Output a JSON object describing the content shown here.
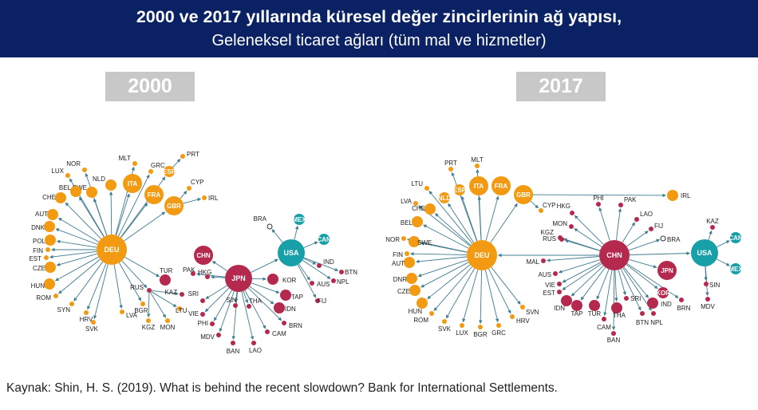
{
  "header": {
    "title": "2000 ve 2017 yıllarında küresel değer zincirlerinin ağ yapısı,",
    "subtitle": "Geleneksel ticaret ağları (tüm mal ve hizmetler)"
  },
  "years": {
    "left": "2000",
    "right": "2017"
  },
  "source": "Kaynak: Shin, H. S. (2019). What is behind the recent slowdown? Bank for International Settlements.",
  "colors": {
    "header_bg": "#0a2263",
    "orange": "#f29a12",
    "crimson": "#b5294e",
    "teal": "#17a0a8",
    "edge": "#3f7c8f",
    "year_box": "#c8c8c8"
  },
  "network_2000": {
    "nodes": [
      {
        "id": "DEU",
        "label": "DEU",
        "group": "orange",
        "size": "hub"
      },
      {
        "id": "ITA",
        "label": "ITA",
        "group": "orange",
        "size": "m"
      },
      {
        "id": "FRA",
        "label": "FRA",
        "group": "orange",
        "size": "m"
      },
      {
        "id": "GBR",
        "label": "GBR",
        "group": "orange",
        "size": "m"
      },
      {
        "id": "ESP",
        "label": "ESP",
        "group": "orange",
        "size": "s"
      },
      {
        "id": "NLD",
        "label": "NLD",
        "group": "orange",
        "size": "s"
      },
      {
        "id": "SWE",
        "label": "SWE",
        "group": "orange",
        "size": "s"
      },
      {
        "id": "NOR",
        "label": "NOR",
        "group": "orange",
        "size": "xs"
      },
      {
        "id": "LUX",
        "label": "LUX",
        "group": "orange",
        "size": "xs"
      },
      {
        "id": "BEL",
        "label": "BEL",
        "group": "orange",
        "size": "s"
      },
      {
        "id": "CHE",
        "label": "CHE",
        "group": "orange",
        "size": "s"
      },
      {
        "id": "AUT",
        "label": "AUT",
        "group": "orange",
        "size": "s"
      },
      {
        "id": "DNK",
        "label": "DNK",
        "group": "orange",
        "size": "s"
      },
      {
        "id": "POL",
        "label": "POL",
        "group": "orange",
        "size": "s"
      },
      {
        "id": "FIN",
        "label": "FIN",
        "group": "orange",
        "size": "xs"
      },
      {
        "id": "EST",
        "label": "EST",
        "group": "orange",
        "size": "xs"
      },
      {
        "id": "CZE",
        "label": "CZE",
        "group": "orange",
        "size": "s"
      },
      {
        "id": "HUN",
        "label": "HUN",
        "group": "orange",
        "size": "s"
      },
      {
        "id": "ROM",
        "label": "ROM",
        "group": "orange",
        "size": "xs"
      },
      {
        "id": "SYN",
        "label": "SYN",
        "group": "orange",
        "size": "xs"
      },
      {
        "id": "HRV",
        "label": "HRV",
        "group": "orange",
        "size": "xs"
      },
      {
        "id": "SVK",
        "label": "SVK",
        "group": "orange",
        "size": "xs"
      },
      {
        "id": "LVA",
        "label": "LVA",
        "group": "orange",
        "size": "xs"
      },
      {
        "id": "BGR",
        "label": "BGR",
        "group": "orange",
        "size": "xs"
      },
      {
        "id": "KGZ",
        "label": "KGZ",
        "group": "orange",
        "size": "xs"
      },
      {
        "id": "MON",
        "label": "MON",
        "group": "orange",
        "size": "xs"
      },
      {
        "id": "MLT",
        "label": "MLT",
        "group": "orange",
        "size": "xs"
      },
      {
        "id": "GRC",
        "label": "GRC",
        "group": "orange",
        "size": "xs"
      },
      {
        "id": "PRT",
        "label": "PRT",
        "group": "orange",
        "size": "xs"
      },
      {
        "id": "CYP",
        "label": "CYP",
        "group": "orange",
        "size": "xs"
      },
      {
        "id": "IRL",
        "label": "IRL",
        "group": "orange",
        "size": "xs"
      },
      {
        "id": "LTU",
        "label": "LTU",
        "group": "orange",
        "size": "xs"
      },
      {
        "id": "TUR",
        "label": "TUR",
        "group": "crimson",
        "size": "s"
      },
      {
        "id": "RUS",
        "label": "RUS",
        "group": "crimson",
        "size": "xs"
      },
      {
        "id": "KAZ",
        "label": "KAZ",
        "group": "crimson",
        "size": "xs"
      },
      {
        "id": "JPN",
        "label": "JPN",
        "group": "crimson",
        "size": "l"
      },
      {
        "id": "CHN",
        "label": "CHN",
        "group": "crimson",
        "size": "m"
      },
      {
        "id": "KOR",
        "label": "KOR",
        "group": "crimson",
        "size": "s"
      },
      {
        "id": "PAK",
        "label": "PAK",
        "group": "crimson",
        "size": "xs"
      },
      {
        "id": "HKG",
        "label": "HKG",
        "group": "crimson",
        "size": "xs"
      },
      {
        "id": "SRI",
        "label": "SRI",
        "group": "crimson",
        "size": "xs"
      },
      {
        "id": "VIE",
        "label": "VIE",
        "group": "crimson",
        "size": "xs"
      },
      {
        "id": "PHI",
        "label": "PHI",
        "group": "crimson",
        "size": "xs"
      },
      {
        "id": "MDV",
        "label": "MDV",
        "group": "crimson",
        "size": "xs"
      },
      {
        "id": "BAN",
        "label": "BAN",
        "group": "crimson",
        "size": "xs"
      },
      {
        "id": "SIN",
        "label": "SIN",
        "group": "crimson",
        "size": "xs"
      },
      {
        "id": "THA",
        "label": "THA",
        "group": "crimson",
        "size": "xs"
      },
      {
        "id": "LAO",
        "label": "LAO",
        "group": "crimson",
        "size": "xs"
      },
      {
        "id": "CAM",
        "label": "CAM",
        "group": "crimson",
        "size": "xs"
      },
      {
        "id": "IDN",
        "label": "IDN",
        "group": "crimson",
        "size": "s"
      },
      {
        "id": "TAP",
        "label": "TAP",
        "group": "crimson",
        "size": "s"
      },
      {
        "id": "BRN",
        "label": "BRN",
        "group": "crimson",
        "size": "xs"
      },
      {
        "id": "USA",
        "label": "USA",
        "group": "teal",
        "size": "l"
      },
      {
        "id": "MEX",
        "label": "MEX",
        "group": "teal",
        "size": "s"
      },
      {
        "id": "CAN",
        "label": "CAN",
        "group": "teal",
        "size": "s"
      },
      {
        "id": "BRA",
        "label": "BRA",
        "group": "hollow",
        "size": "xs"
      },
      {
        "id": "IND",
        "label": "IND",
        "group": "crimson",
        "size": "xs"
      },
      {
        "id": "BTN",
        "label": "BTN",
        "group": "crimson",
        "size": "xs"
      },
      {
        "id": "NPL",
        "label": "NPL",
        "group": "crimson",
        "size": "xs"
      },
      {
        "id": "AUS",
        "label": "AUS",
        "group": "crimson",
        "size": "xs"
      },
      {
        "id": "FIJ",
        "label": "FIJ",
        "group": "crimson",
        "size": "xs"
      }
    ],
    "edges": [
      [
        "DEU",
        "ITA"
      ],
      [
        "DEU",
        "FRA"
      ],
      [
        "DEU",
        "GBR"
      ],
      [
        "DEU",
        "ESP"
      ],
      [
        "DEU",
        "NLD"
      ],
      [
        "DEU",
        "SWE"
      ],
      [
        "DEU",
        "NOR"
      ],
      [
        "DEU",
        "LUX"
      ],
      [
        "DEU",
        "BEL"
      ],
      [
        "DEU",
        "CHE"
      ],
      [
        "DEU",
        "AUT"
      ],
      [
        "DEU",
        "DNK"
      ],
      [
        "DEU",
        "POL"
      ],
      [
        "DEU",
        "FIN"
      ],
      [
        "DEU",
        "EST"
      ],
      [
        "DEU",
        "CZE"
      ],
      [
        "DEU",
        "HUN"
      ],
      [
        "DEU",
        "ROM"
      ],
      [
        "DEU",
        "SYN"
      ],
      [
        "DEU",
        "HRV"
      ],
      [
        "DEU",
        "SVK"
      ],
      [
        "DEU",
        "LVA"
      ],
      [
        "DEU",
        "BGR"
      ],
      [
        "DEU",
        "TUR"
      ],
      [
        "DEU",
        "RUS"
      ],
      [
        "DEU",
        "MLT"
      ],
      [
        "DEU",
        "GRC"
      ],
      [
        "ESP",
        "PRT"
      ],
      [
        "GBR",
        "CYP"
      ],
      [
        "GBR",
        "IRL"
      ],
      [
        "RUS",
        "KAZ"
      ],
      [
        "RUS",
        "KGZ"
      ],
      [
        "RUS",
        "MON"
      ],
      [
        "RUS",
        "LTU"
      ],
      [
        "JPN",
        "CHN"
      ],
      [
        "JPN",
        "KOR"
      ],
      [
        "JPN",
        "USA"
      ],
      [
        "JPN",
        "PAK"
      ],
      [
        "JPN",
        "HKG"
      ],
      [
        "JPN",
        "SRI"
      ],
      [
        "JPN",
        "VIE"
      ],
      [
        "JPN",
        "PHI"
      ],
      [
        "JPN",
        "MDV"
      ],
      [
        "JPN",
        "BAN"
      ],
      [
        "JPN",
        "SIN"
      ],
      [
        "JPN",
        "THA"
      ],
      [
        "JPN",
        "LAO"
      ],
      [
        "JPN",
        "CAM"
      ],
      [
        "JPN",
        "IDN"
      ],
      [
        "JPN",
        "TAP"
      ],
      [
        "JPN",
        "BRN"
      ],
      [
        "USA",
        "MEX"
      ],
      [
        "USA",
        "CAN"
      ],
      [
        "USA",
        "BRA"
      ],
      [
        "USA",
        "IND"
      ],
      [
        "USA",
        "BTN"
      ],
      [
        "USA",
        "NPL"
      ],
      [
        "USA",
        "AUS"
      ],
      [
        "USA",
        "FIJ"
      ]
    ]
  },
  "network_2017": {
    "nodes": [
      {
        "id": "DEU",
        "label": "DEU",
        "group": "orange",
        "size": "hub"
      },
      {
        "id": "ITA",
        "label": "ITA",
        "group": "orange",
        "size": "m"
      },
      {
        "id": "FRA",
        "label": "FRA",
        "group": "orange",
        "size": "m"
      },
      {
        "id": "GBR",
        "label": "GBR",
        "group": "orange",
        "size": "m"
      },
      {
        "id": "ESP",
        "label": "ESP",
        "group": "orange",
        "size": "s"
      },
      {
        "id": "NLD",
        "label": "NLD",
        "group": "orange",
        "size": "s"
      },
      {
        "id": "PRT",
        "label": "PRT",
        "group": "orange",
        "size": "xs"
      },
      {
        "id": "MLT",
        "label": "MLT",
        "group": "orange",
        "size": "xs"
      },
      {
        "id": "LTU",
        "label": "LTU",
        "group": "orange",
        "size": "xs"
      },
      {
        "id": "LVA",
        "label": "LVA",
        "group": "orange",
        "size": "xs"
      },
      {
        "id": "CHE",
        "label": "CHE",
        "group": "orange",
        "size": "s"
      },
      {
        "id": "BEL",
        "label": "BEL",
        "group": "orange",
        "size": "s"
      },
      {
        "id": "NOR",
        "label": "NOR",
        "group": "orange",
        "size": "xs"
      },
      {
        "id": "SWE",
        "label": "SWE",
        "group": "orange",
        "size": "s"
      },
      {
        "id": "FIN",
        "label": "FIN",
        "group": "orange",
        "size": "xs"
      },
      {
        "id": "AUT",
        "label": "AUT",
        "group": "orange",
        "size": "s"
      },
      {
        "id": "DNR",
        "label": "DNR",
        "group": "orange",
        "size": "s"
      },
      {
        "id": "CZE",
        "label": "CZE",
        "group": "orange",
        "size": "s"
      },
      {
        "id": "HUN",
        "label": "HUN",
        "group": "orange",
        "size": "s"
      },
      {
        "id": "ROM",
        "label": "ROM",
        "group": "orange",
        "size": "xs"
      },
      {
        "id": "SVK",
        "label": "SVK",
        "group": "orange",
        "size": "xs"
      },
      {
        "id": "LUX",
        "label": "LUX",
        "group": "orange",
        "size": "xs"
      },
      {
        "id": "BGR",
        "label": "BGR",
        "group": "orange",
        "size": "xs"
      },
      {
        "id": "GRC",
        "label": "GRC",
        "group": "orange",
        "size": "xs"
      },
      {
        "id": "HRV",
        "label": "HRV",
        "group": "orange",
        "size": "xs"
      },
      {
        "id": "SVN",
        "label": "SVN",
        "group": "orange",
        "size": "xs"
      },
      {
        "id": "IRL",
        "label": "IRL",
        "group": "orange",
        "size": "s"
      },
      {
        "id": "CYP",
        "label": "CYP",
        "group": "orange",
        "size": "xs"
      },
      {
        "id": "CHN",
        "label": "CHN",
        "group": "crimson",
        "size": "hub"
      },
      {
        "id": "JPN",
        "label": "JPN",
        "group": "crimson",
        "size": "m"
      },
      {
        "id": "KOR",
        "label": "KOR",
        "group": "crimson",
        "size": "s"
      },
      {
        "id": "HKG",
        "label": "HKG",
        "group": "crimson",
        "size": "xs"
      },
      {
        "id": "PHI",
        "label": "PHI",
        "group": "crimson",
        "size": "xs"
      },
      {
        "id": "PAK",
        "label": "PAK",
        "group": "crimson",
        "size": "xs"
      },
      {
        "id": "LAO",
        "label": "LAO",
        "group": "crimson",
        "size": "xs"
      },
      {
        "id": "FIJ",
        "label": "FIJ",
        "group": "crimson",
        "size": "xs"
      },
      {
        "id": "MON",
        "label": "MON",
        "group": "crimson",
        "size": "xs"
      },
      {
        "id": "KGZ",
        "label": "KGZ",
        "group": "crimson",
        "size": "xs"
      },
      {
        "id": "RUS",
        "label": "RUS",
        "group": "crimson",
        "size": "xs"
      },
      {
        "id": "MAL",
        "label": "MAL",
        "group": "crimson",
        "size": "xs"
      },
      {
        "id": "AUS",
        "label": "AUS",
        "group": "crimson",
        "size": "xs"
      },
      {
        "id": "VIE",
        "label": "VIE",
        "group": "crimson",
        "size": "xs"
      },
      {
        "id": "EST",
        "label": "EST",
        "group": "crimson",
        "size": "xs"
      },
      {
        "id": "IDN",
        "label": "IDN",
        "group": "crimson",
        "size": "s"
      },
      {
        "id": "TAP",
        "label": "TAP",
        "group": "crimson",
        "size": "s"
      },
      {
        "id": "TUR",
        "label": "TUR",
        "group": "crimson",
        "size": "s"
      },
      {
        "id": "THA",
        "label": "THA",
        "group": "crimson",
        "size": "s"
      },
      {
        "id": "CAM",
        "label": "CAM",
        "group": "crimson",
        "size": "xs"
      },
      {
        "id": "BAN",
        "label": "BAN",
        "group": "crimson",
        "size": "xs"
      },
      {
        "id": "SRI",
        "label": "SRI",
        "group": "crimson",
        "size": "xs"
      },
      {
        "id": "BTN",
        "label": "BTN",
        "group": "crimson",
        "size": "xs"
      },
      {
        "id": "NPL",
        "label": "NPL",
        "group": "crimson",
        "size": "xs"
      },
      {
        "id": "IND",
        "label": "IND",
        "group": "crimson",
        "size": "s"
      },
      {
        "id": "USA",
        "label": "USA",
        "group": "teal",
        "size": "l"
      },
      {
        "id": "CAN",
        "label": "CAN",
        "group": "teal",
        "size": "s"
      },
      {
        "id": "MEX",
        "label": "MEX",
        "group": "teal",
        "size": "s"
      },
      {
        "id": "KAZ",
        "label": "KAZ",
        "group": "crimson",
        "size": "xs"
      },
      {
        "id": "SIN",
        "label": "SIN",
        "group": "crimson",
        "size": "xs"
      },
      {
        "id": "MDV",
        "label": "MDV",
        "group": "crimson",
        "size": "xs"
      },
      {
        "id": "BRN",
        "label": "BRN",
        "group": "crimson",
        "size": "xs"
      },
      {
        "id": "BRA",
        "label": "BRA",
        "group": "hollow",
        "size": "xs"
      }
    ],
    "edges": [
      [
        "DEU",
        "ITA"
      ],
      [
        "DEU",
        "FRA"
      ],
      [
        "DEU",
        "GBR"
      ],
      [
        "DEU",
        "ESP"
      ],
      [
        "DEU",
        "NLD"
      ],
      [
        "DEU",
        "PRT"
      ],
      [
        "DEU",
        "MLT"
      ],
      [
        "DEU",
        "LTU"
      ],
      [
        "DEU",
        "LVA"
      ],
      [
        "DEU",
        "CHE"
      ],
      [
        "DEU",
        "BEL"
      ],
      [
        "DEU",
        "NOR"
      ],
      [
        "DEU",
        "SWE"
      ],
      [
        "DEU",
        "FIN"
      ],
      [
        "DEU",
        "AUT"
      ],
      [
        "DEU",
        "DNR"
      ],
      [
        "DEU",
        "CZE"
      ],
      [
        "DEU",
        "HUN"
      ],
      [
        "DEU",
        "ROM"
      ],
      [
        "DEU",
        "SVK"
      ],
      [
        "DEU",
        "LUX"
      ],
      [
        "DEU",
        "BGR"
      ],
      [
        "DEU",
        "GRC"
      ],
      [
        "DEU",
        "HRV"
      ],
      [
        "DEU",
        "SVN"
      ],
      [
        "GBR",
        "IRL"
      ],
      [
        "GBR",
        "CYP"
      ],
      [
        "CHN",
        "DEU"
      ],
      [
        "CHN",
        "USA"
      ],
      [
        "CHN",
        "JPN"
      ],
      [
        "CHN",
        "KOR"
      ],
      [
        "CHN",
        "HKG"
      ],
      [
        "CHN",
        "PHI"
      ],
      [
        "CHN",
        "PAK"
      ],
      [
        "CHN",
        "LAO"
      ],
      [
        "CHN",
        "FIJ"
      ],
      [
        "CHN",
        "MON"
      ],
      [
        "CHN",
        "KGZ"
      ],
      [
        "CHN",
        "RUS"
      ],
      [
        "CHN",
        "MAL"
      ],
      [
        "CHN",
        "AUS"
      ],
      [
        "CHN",
        "VIE"
      ],
      [
        "CHN",
        "EST"
      ],
      [
        "CHN",
        "IDN"
      ],
      [
        "CHN",
        "TAP"
      ],
      [
        "CHN",
        "TUR"
      ],
      [
        "CHN",
        "THA"
      ],
      [
        "CHN",
        "CAM"
      ],
      [
        "CHN",
        "BAN"
      ],
      [
        "CHN",
        "SRI"
      ],
      [
        "CHN",
        "BTN"
      ],
      [
        "CHN",
        "NPL"
      ],
      [
        "CHN",
        "IND"
      ],
      [
        "CHN",
        "BRA"
      ],
      [
        "CHN",
        "BRN"
      ],
      [
        "USA",
        "CAN"
      ],
      [
        "USA",
        "MEX"
      ],
      [
        "USA",
        "KAZ"
      ],
      [
        "USA",
        "SIN"
      ],
      [
        "USA",
        "MDV"
      ]
    ]
  }
}
